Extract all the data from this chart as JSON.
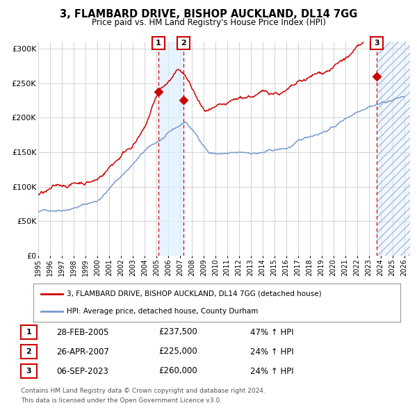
{
  "title": "3, FLAMBARD DRIVE, BISHOP AUCKLAND, DL14 7GG",
  "subtitle": "Price paid vs. HM Land Registry's House Price Index (HPI)",
  "legend_line1": "3, FLAMBARD DRIVE, BISHOP AUCKLAND, DL14 7GG (detached house)",
  "legend_line2": "HPI: Average price, detached house, County Durham",
  "table_rows": [
    {
      "num": "1",
      "date": "28-FEB-2005",
      "price": "£237,500",
      "hpi": "47% ↑ HPI"
    },
    {
      "num": "2",
      "date": "26-APR-2007",
      "price": "£225,000",
      "hpi": "24% ↑ HPI"
    },
    {
      "num": "3",
      "date": "06-SEP-2023",
      "price": "£260,000",
      "hpi": "24% ↑ HPI"
    }
  ],
  "footnote1": "Contains HM Land Registry data © Crown copyright and database right 2024.",
  "footnote2": "This data is licensed under the Open Government Licence v3.0.",
  "x_start": 1995.0,
  "x_end": 2026.5,
  "y_ticks": [
    0,
    50000,
    100000,
    150000,
    200000,
    250000,
    300000
  ],
  "y_labels": [
    "£0",
    "£50K",
    "£100K",
    "£150K",
    "£200K",
    "£250K",
    "£300K"
  ],
  "x_ticks": [
    1995,
    1996,
    1997,
    1998,
    1999,
    2000,
    2001,
    2002,
    2003,
    2004,
    2005,
    2006,
    2007,
    2008,
    2009,
    2010,
    2011,
    2012,
    2013,
    2014,
    2015,
    2016,
    2017,
    2018,
    2019,
    2020,
    2021,
    2022,
    2023,
    2024,
    2025,
    2026
  ],
  "sale_dates": [
    2005.16,
    2007.32,
    2023.68
  ],
  "sale_prices": [
    237500,
    225000,
    260000
  ],
  "red_line_color": "#cc0000",
  "blue_line_color": "#7799cc",
  "shade_color": "#ddeeff",
  "dashed_color": "#cc0000",
  "marker_color": "#cc0000",
  "bg_color": "#ffffff",
  "grid_color": "#cccccc",
  "hatch_bg_color": "#ddeeff"
}
